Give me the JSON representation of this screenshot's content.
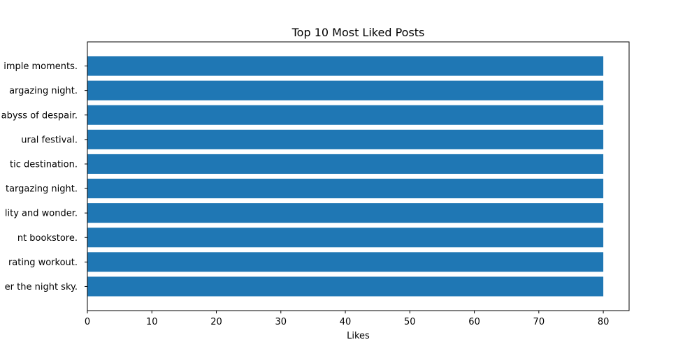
{
  "chart_data": {
    "type": "bar",
    "orientation": "horizontal",
    "title": "Top 10 Most Liked Posts",
    "xlabel": "Likes",
    "ylabel": "",
    "xlim": [
      0,
      84
    ],
    "xticks": [
      0,
      10,
      20,
      30,
      40,
      50,
      60,
      70,
      80
    ],
    "categories": [
      "er the night sky.",
      "rating workout.",
      "nt bookstore.",
      "lity and wonder.",
      "targazing night.",
      "tic destination.",
      "ural festival.",
      "abyss of despair.",
      "argazing night.",
      "imple moments."
    ],
    "values": [
      80,
      80,
      80,
      80,
      80,
      80,
      80,
      80,
      80,
      80
    ],
    "bar_color": "#1f77b4",
    "grid": false,
    "legend": "none"
  }
}
